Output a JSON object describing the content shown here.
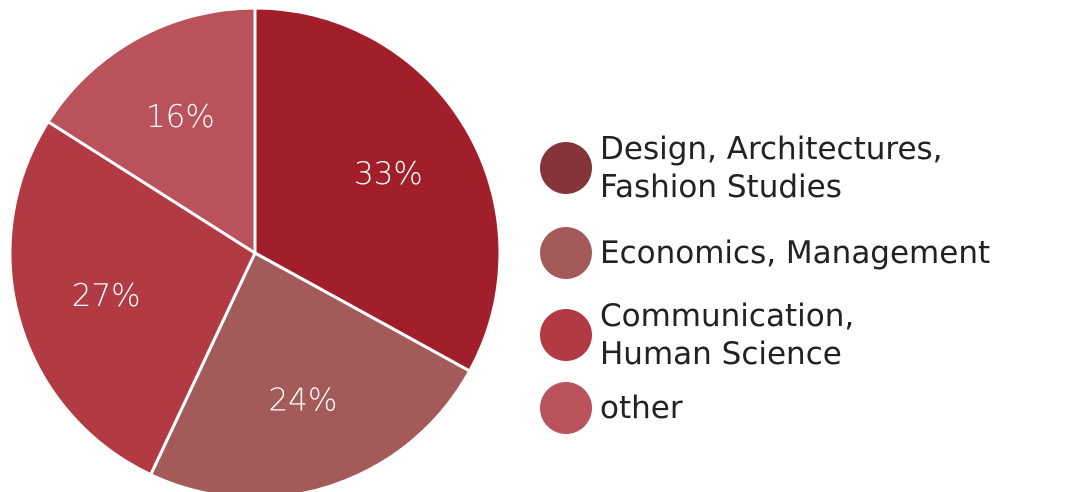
{
  "chart_data": {
    "type": "pie",
    "categories": [
      "Design, Architectures,\nFashion Studies",
      "Economics, Management",
      "Communication,\nHuman Science",
      "other"
    ],
    "values": [
      33,
      24,
      27,
      16
    ],
    "slice_labels": [
      "33%",
      "24%",
      "27%",
      "16%"
    ],
    "colors": [
      "#a11f2b",
      "#a35a58",
      "#b23a43",
      "#b9525b"
    ],
    "legend_colors": [
      "#86343a",
      "#a35a58",
      "#b23a43",
      "#b9525b"
    ],
    "start": "12 o'clock",
    "direction": "clockwise",
    "legend_position": "right"
  }
}
